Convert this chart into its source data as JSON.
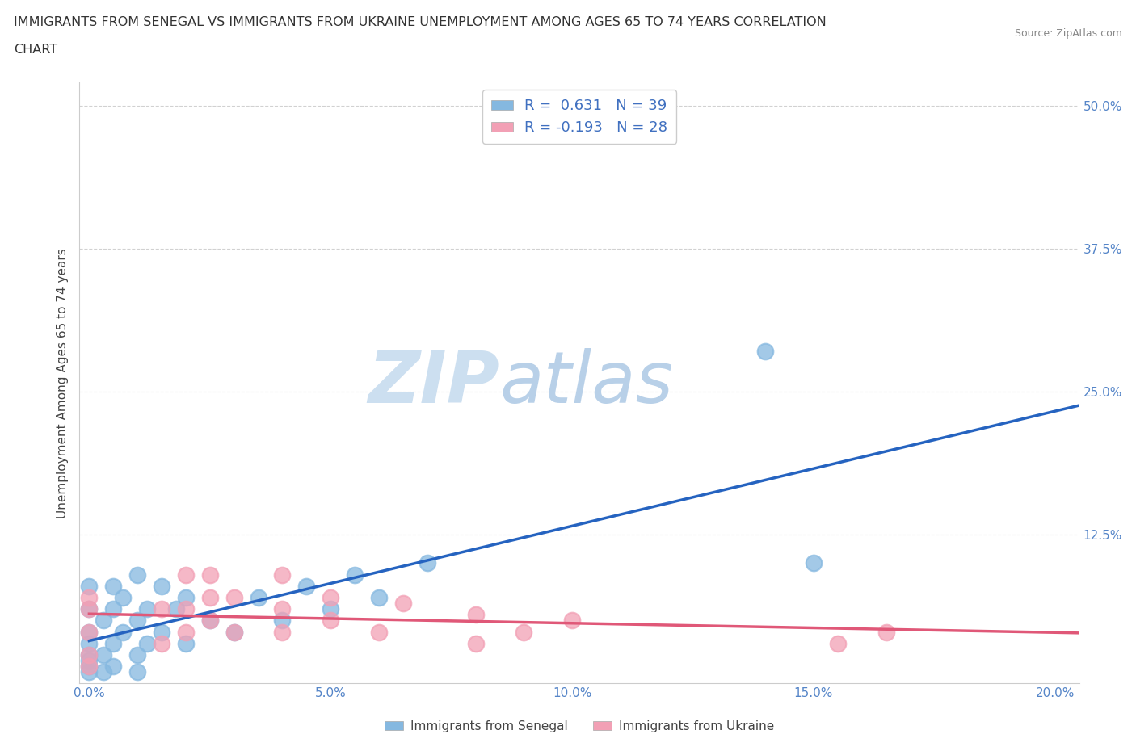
{
  "title_line1": "IMMIGRANTS FROM SENEGAL VS IMMIGRANTS FROM UKRAINE UNEMPLOYMENT AMONG AGES 65 TO 74 YEARS CORRELATION",
  "title_line2": "CHART",
  "source_text": "Source: ZipAtlas.com",
  "ylabel": "Unemployment Among Ages 65 to 74 years",
  "xlim": [
    -0.002,
    0.205
  ],
  "ylim": [
    -0.005,
    0.52
  ],
  "xticks": [
    0.0,
    0.025,
    0.05,
    0.075,
    0.1,
    0.125,
    0.15,
    0.175,
    0.2
  ],
  "xticklabels": [
    "0.0%",
    "",
    "5.0%",
    "",
    "10.0%",
    "",
    "15.0%",
    "",
    "20.0%"
  ],
  "yticks": [
    0.0,
    0.125,
    0.25,
    0.375,
    0.5
  ],
  "yticklabels": [
    "",
    "12.5%",
    "25.0%",
    "37.5%",
    "50.0%"
  ],
  "senegal_R": 0.631,
  "senegal_N": 39,
  "ukraine_R": -0.193,
  "ukraine_N": 28,
  "senegal_color": "#85b8e0",
  "ukraine_color": "#f2a0b5",
  "senegal_line_color": "#2563c0",
  "ukraine_line_color": "#e05878",
  "dashed_line_color": "#90b8e0",
  "watermark_zip_color": "#ccdff0",
  "watermark_atlas_color": "#b8d0e8",
  "grid_color": "#cccccc",
  "grid_style": "--",
  "background_color": "#ffffff",
  "title_color": "#333333",
  "axis_label_color": "#444444",
  "tick_label_color": "#5585c8",
  "legend_R_color": "#4070c0",
  "legend_text_color": "#333333",
  "senegal_x": [
    0.0,
    0.0,
    0.0,
    0.0,
    0.0,
    0.0,
    0.0,
    0.0,
    0.003,
    0.003,
    0.003,
    0.005,
    0.005,
    0.005,
    0.005,
    0.007,
    0.007,
    0.01,
    0.01,
    0.01,
    0.01,
    0.012,
    0.012,
    0.015,
    0.015,
    0.018,
    0.02,
    0.02,
    0.025,
    0.03,
    0.035,
    0.04,
    0.045,
    0.05,
    0.055,
    0.06,
    0.07,
    0.14,
    0.15
  ],
  "senegal_y": [
    0.005,
    0.01,
    0.015,
    0.02,
    0.03,
    0.04,
    0.06,
    0.08,
    0.005,
    0.02,
    0.05,
    0.01,
    0.03,
    0.06,
    0.08,
    0.04,
    0.07,
    0.005,
    0.02,
    0.05,
    0.09,
    0.03,
    0.06,
    0.04,
    0.08,
    0.06,
    0.03,
    0.07,
    0.05,
    0.04,
    0.07,
    0.05,
    0.08,
    0.06,
    0.09,
    0.07,
    0.1,
    0.285,
    0.1
  ],
  "ukraine_x": [
    0.0,
    0.0,
    0.0,
    0.0,
    0.0,
    0.015,
    0.015,
    0.02,
    0.02,
    0.02,
    0.025,
    0.025,
    0.025,
    0.03,
    0.03,
    0.04,
    0.04,
    0.04,
    0.05,
    0.05,
    0.06,
    0.065,
    0.08,
    0.08,
    0.09,
    0.1,
    0.155,
    0.165
  ],
  "ukraine_y": [
    0.01,
    0.02,
    0.04,
    0.06,
    0.07,
    0.03,
    0.06,
    0.04,
    0.06,
    0.09,
    0.05,
    0.07,
    0.09,
    0.04,
    0.07,
    0.04,
    0.06,
    0.09,
    0.05,
    0.07,
    0.04,
    0.065,
    0.03,
    0.055,
    0.04,
    0.05,
    0.03,
    0.04
  ]
}
